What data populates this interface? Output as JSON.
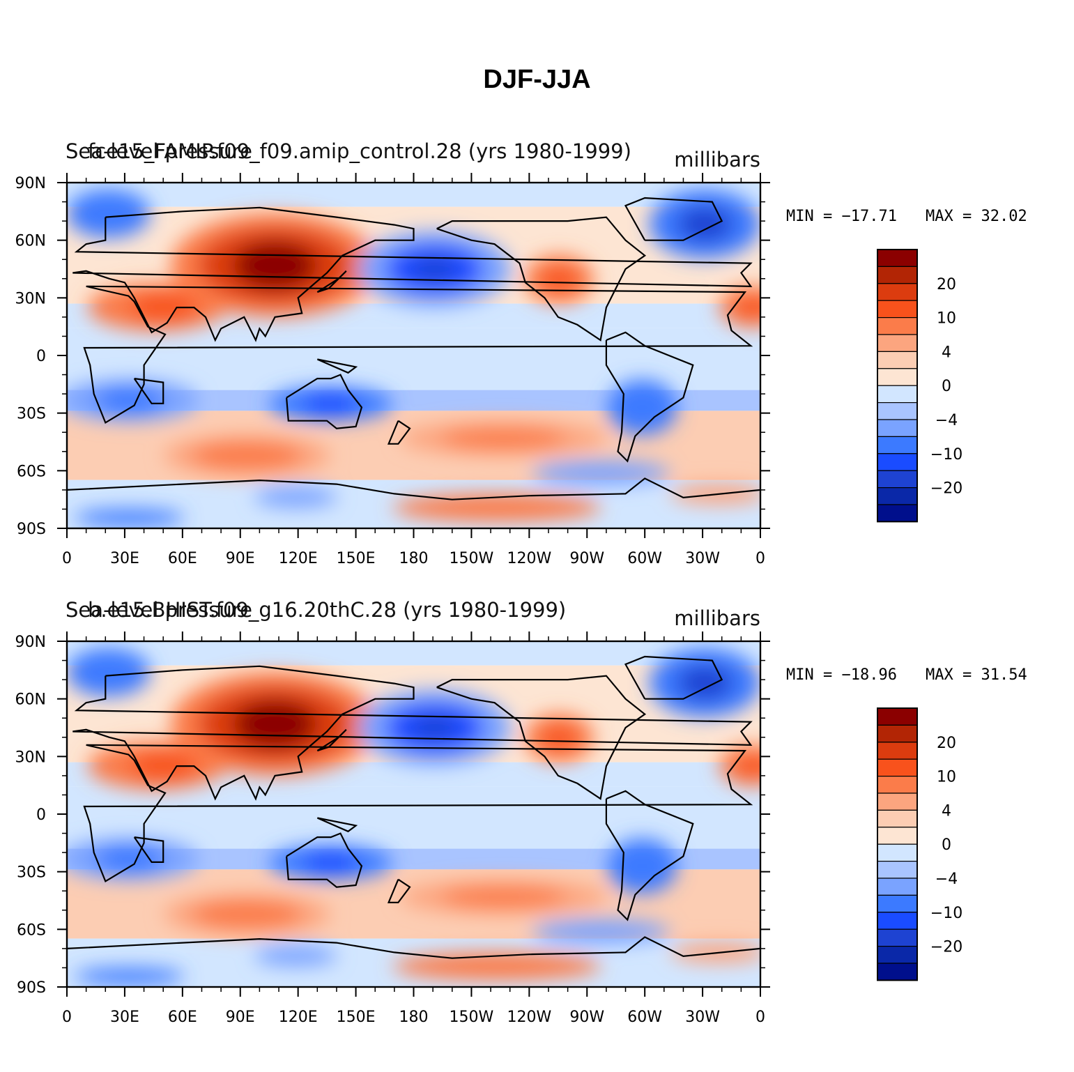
{
  "title": "DJF-JJA",
  "colorbar": {
    "colors": [
      "#000f8c",
      "#0a28a8",
      "#1e43d2",
      "#1a4cff",
      "#3c7aff",
      "#7aa3ff",
      "#a9c4ff",
      "#d2e6ff",
      "#fde5d3",
      "#fccdb3",
      "#fca57f",
      "#fb7c4a",
      "#f8521c",
      "#dc3c0f",
      "#b22505",
      "#8b0000"
    ],
    "labels": [
      "-20",
      "-10",
      "-4",
      "0",
      "4",
      "10",
      "20"
    ]
  },
  "chart_data": [
    {
      "type": "heatmap",
      "title": "Sea-level pressure",
      "subtitle": "fce15_FAMIP.f09_f09.amip_control.28 (yrs 1980-1999)",
      "units": "millibars",
      "min_label": "MIN = −17.71",
      "max_label": "MAX =   32.02",
      "min": -17.71,
      "max": 32.02,
      "x_ticks": [
        "0",
        "30E",
        "60E",
        "90E",
        "120E",
        "150E",
        "180",
        "150W",
        "120W",
        "90W",
        "60W",
        "30W",
        "0"
      ],
      "y_ticks": [
        "90N",
        "60N",
        "30N",
        "0",
        "30S",
        "60S",
        "90S"
      ],
      "colorbar_labels": [
        "20",
        "10",
        "4",
        "0",
        "−4",
        "−10",
        "−20"
      ]
    },
    {
      "type": "heatmap",
      "title": "Sea-level pressure",
      "subtitle": "b.e15.BHIST.f09_g16.20thC.28 (yrs 1980-1999)",
      "units": "millibars",
      "min_label": "MIN = −18.96",
      "max_label": "MAX =   31.54",
      "min": -18.96,
      "max": 31.54,
      "x_ticks": [
        "0",
        "30E",
        "60E",
        "90E",
        "120E",
        "150E",
        "180",
        "150W",
        "120W",
        "90W",
        "60W",
        "30W",
        "0"
      ],
      "y_ticks": [
        "90N",
        "60N",
        "30N",
        "0",
        "30S",
        "60S",
        "90S"
      ],
      "colorbar_labels": [
        "20",
        "10",
        "4",
        "0",
        "−4",
        "−10",
        "−20"
      ]
    }
  ]
}
